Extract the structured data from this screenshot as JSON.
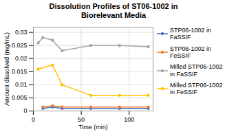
{
  "chart_data": {
    "type": "line",
    "title": "Dissolution Profiles of ST06-1002 in\nBiorelevant Media",
    "xlabel": "Time (min)",
    "ylabel": "Amount dissolved (mg/mL)",
    "series": [
      {
        "name": "STP06-1002 in\nFaSSIF",
        "color": "#4472C4",
        "marker": "circle",
        "x": [
          10,
          20,
          30,
          60,
          90,
          120
        ],
        "values": [
          0.001,
          0.0015,
          0.001,
          0.001,
          0.001,
          0.001
        ]
      },
      {
        "name": "STP06-1002 in\nFeSSIF",
        "color": "#ED7D31",
        "marker": "circle",
        "x": [
          10,
          20,
          30,
          60,
          90,
          120
        ],
        "values": [
          0.0015,
          0.002,
          0.0015,
          0.0015,
          0.0015,
          0.0015
        ]
      },
      {
        "name": "Milled STP06-1002\nin FaSSIF",
        "color": "#A5A5A5",
        "marker": "circle",
        "x": [
          5,
          10,
          20,
          30,
          60,
          90,
          120
        ],
        "values": [
          0.026,
          0.028,
          0.027,
          0.023,
          0.025,
          0.025,
          0.0245
        ]
      },
      {
        "name": "Milled STP06-1002\nin FeSSIF",
        "color": "#FFC000",
        "marker": "circle",
        "x": [
          5,
          20,
          30,
          60,
          90,
          120
        ],
        "values": [
          0.016,
          0.0175,
          0.01,
          0.006,
          0.006,
          0.006
        ]
      }
    ],
    "xlim": [
      0,
      125
    ],
    "xticks": [
      0,
      50,
      100
    ],
    "ylim": [
      0,
      0.032
    ],
    "yticks": [
      0,
      0.005,
      0.01,
      0.015,
      0.02,
      0.025,
      0.03
    ],
    "grid": true,
    "legend": "right"
  }
}
